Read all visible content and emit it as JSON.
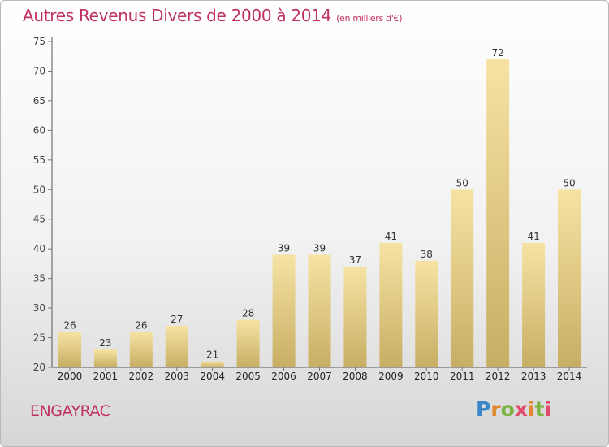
{
  "header": {
    "title": "Autres Revenus Divers de 2000 à 2014",
    "subtitle": "(en milliers d'€)"
  },
  "footer": {
    "location": "ENGAYRAC",
    "brand_letters": [
      "P",
      "r",
      "o",
      "x",
      "i",
      "t",
      "i"
    ],
    "brand_colors": [
      "#3a86c8",
      "#e2872c",
      "#7bb342",
      "#e14b6b",
      "#e2872c",
      "#7bb342",
      "#e14b6b"
    ]
  },
  "colors": {
    "title": "#c0325e",
    "bar_light": "#f6e3a4",
    "bar_dark": "#c8ae63",
    "axis": "#444444",
    "grid_tick": "#777777"
  },
  "chart_data": {
    "type": "bar",
    "categories": [
      "2000",
      "2001",
      "2002",
      "2003",
      "2004",
      "2005",
      "2006",
      "2007",
      "2008",
      "2009",
      "2010",
      "2011",
      "2012",
      "2013",
      "2014"
    ],
    "values": [
      26,
      23,
      26,
      27,
      21,
      28,
      39,
      39,
      37,
      41,
      38,
      50,
      72,
      41,
      50
    ],
    "y_ticks": [
      20,
      25,
      30,
      35,
      40,
      45,
      50,
      55,
      60,
      65,
      70,
      75
    ],
    "ylim": [
      20,
      75
    ],
    "grid": false,
    "legend": "none"
  }
}
